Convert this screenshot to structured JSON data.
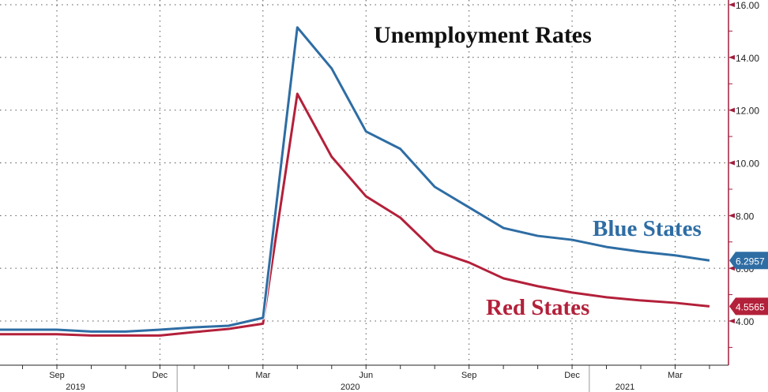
{
  "chart_data": {
    "type": "line",
    "title": "Unemployment Rates",
    "xlabel": "",
    "ylabel": "",
    "x": [
      "2019-08",
      "2019-09",
      "2019-10",
      "2019-11",
      "2019-12",
      "2020-01",
      "2020-02",
      "2020-03",
      "2020-04",
      "2020-05",
      "2020-06",
      "2020-07",
      "2020-08",
      "2020-09",
      "2020-10",
      "2020-11",
      "2020-12",
      "2021-01",
      "2021-02",
      "2021-03",
      "2021-04"
    ],
    "series": [
      {
        "name": "Blue States",
        "color": "#2e6da4",
        "last_label": "6.2957",
        "values": [
          3.67,
          3.67,
          3.6,
          3.6,
          3.67,
          3.76,
          3.82,
          4.12,
          15.14,
          13.58,
          11.19,
          10.53,
          9.09,
          8.31,
          7.53,
          7.23,
          7.08,
          6.81,
          6.63,
          6.49,
          6.2957
        ]
      },
      {
        "name": "Red States",
        "color": "#b3203a",
        "last_label": "4.5565",
        "values": [
          3.5,
          3.5,
          3.45,
          3.45,
          3.45,
          3.58,
          3.7,
          3.9,
          12.62,
          10.23,
          8.73,
          7.92,
          6.66,
          6.22,
          5.62,
          5.32,
          5.08,
          4.9,
          4.78,
          4.69,
          4.5565
        ]
      }
    ],
    "ylim": [
      2.3,
      16.2
    ],
    "yticks": [
      "4.00",
      "6.00",
      "8.00",
      "10.00",
      "12.00",
      "14.00",
      "16.00"
    ],
    "xticks": [
      {
        "label": "Sep",
        "x": "2019-09"
      },
      {
        "label": "Dec",
        "x": "2019-12"
      },
      {
        "label": "Mar",
        "x": "2020-03"
      },
      {
        "label": "Jun",
        "x": "2020-06"
      },
      {
        "label": "Sep",
        "x": "2020-09"
      },
      {
        "label": "Dec",
        "x": "2020-12"
      },
      {
        "label": "Mar",
        "x": "2021-03"
      }
    ],
    "years": [
      {
        "label": "2019",
        "x": "2019-10"
      },
      {
        "label": "2020",
        "x": "2020-06"
      },
      {
        "label": "2021",
        "x": "2021-02"
      }
    ],
    "grid": true,
    "axis_color": "#a01e3c",
    "y_axis_side": "right"
  }
}
